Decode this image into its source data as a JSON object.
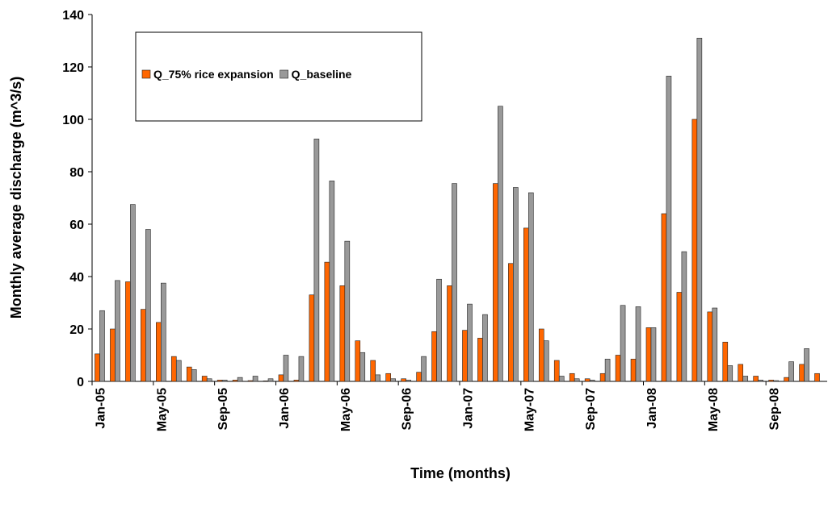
{
  "chart_data": {
    "type": "bar",
    "x_label": "Time (months)",
    "y_label": "Monthly average discharge (m^3/s)",
    "categories": [
      "Jan-05",
      null,
      null,
      null,
      "May-05",
      null,
      null,
      null,
      "Sep-05",
      null,
      null,
      null,
      "Jan-06",
      null,
      null,
      null,
      "May-06",
      null,
      null,
      null,
      "Sep-06",
      null,
      null,
      null,
      "Jan-07",
      null,
      null,
      null,
      "May-07",
      null,
      null,
      null,
      "Sep-07",
      null,
      null,
      null,
      "Jan-08",
      null,
      null,
      null,
      "May-08",
      null,
      null,
      null,
      "Sep-08",
      null,
      null,
      null
    ],
    "series": [
      {
        "name": "Q_75% rice expansion",
        "color": "#ff6600",
        "values": [
          10.5,
          20,
          38,
          27.5,
          22.5,
          9.5,
          5.5,
          2,
          0.5,
          0.5,
          0.3,
          0.2,
          2.5,
          0.5,
          33,
          45.5,
          36.5,
          15.5,
          8,
          3,
          1,
          3.5,
          19,
          36.5,
          19.5,
          16.5,
          75.5,
          45,
          58.5,
          20,
          8,
          3,
          1,
          3,
          10,
          8.5,
          20.5,
          64,
          34,
          100,
          26.5,
          15,
          6.5,
          2,
          0.5,
          1.5,
          6.5,
          3
        ]
      },
      {
        "name": "Q_baseline",
        "color": "#999999",
        "values": [
          27,
          38.5,
          67.5,
          58,
          37.5,
          8,
          4.5,
          1,
          0.5,
          1.5,
          2,
          1,
          10,
          9.5,
          92.5,
          76.5,
          53.5,
          11,
          2.5,
          1,
          0.5,
          9.5,
          39,
          75.5,
          29.5,
          25.5,
          105,
          74,
          72,
          15.5,
          2,
          1,
          0.5,
          8.5,
          29,
          28.5,
          20.5,
          116.5,
          49.5,
          131,
          28,
          6,
          2,
          0.5,
          0.3,
          7.5,
          12.5,
          null
        ]
      }
    ],
    "ylim": [
      0,
      140
    ],
    "yticks": [
      0,
      20,
      40,
      60,
      80,
      100,
      120,
      140
    ],
    "legend": "top-left"
  }
}
